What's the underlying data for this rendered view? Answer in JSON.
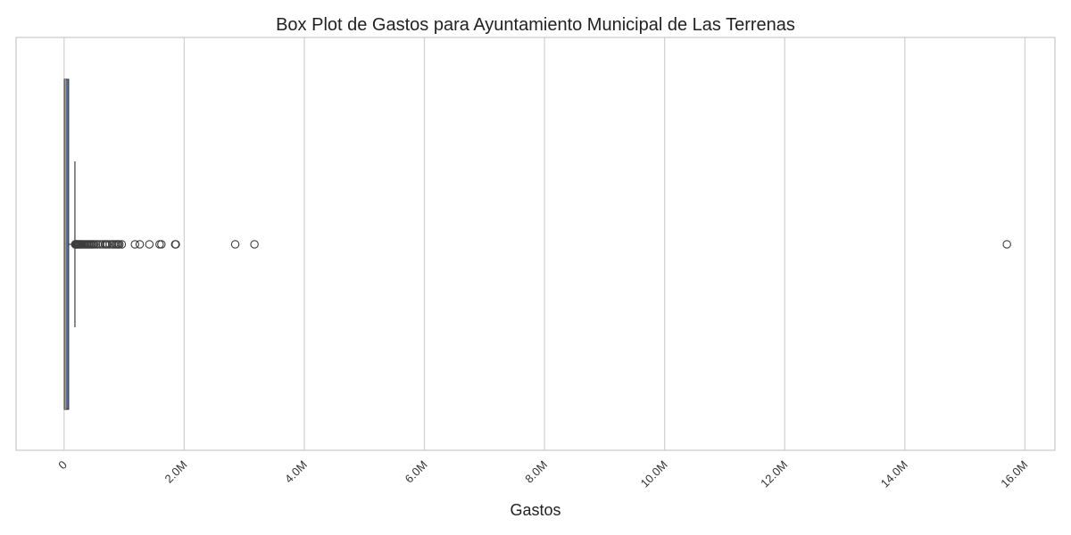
{
  "chart_data": {
    "type": "boxplot",
    "orientation": "horizontal",
    "title": "Box Plot de Gastos para Ayuntamiento Municipal de Las Terrenas",
    "xlabel": "Gastos",
    "ylabel": "",
    "xlim": [
      -800000,
      16500000
    ],
    "xticks": [
      {
        "value": 0,
        "label": "0"
      },
      {
        "value": 2000000,
        "label": "2.0M"
      },
      {
        "value": 4000000,
        "label": "4.0M"
      },
      {
        "value": 6000000,
        "label": "6.0M"
      },
      {
        "value": 8000000,
        "label": "8.0M"
      },
      {
        "value": 10000000,
        "label": "10.0M"
      },
      {
        "value": 12000000,
        "label": "12.0M"
      },
      {
        "value": 14000000,
        "label": "14.0M"
      },
      {
        "value": 16000000,
        "label": "16.0M"
      }
    ],
    "grid": true,
    "box": {
      "whisker_low": 0,
      "q1": 5000,
      "median": 20000,
      "q3": 75000,
      "whisker_high": 180000,
      "color": "#5a6fa8",
      "median_color": "#c9a84a"
    },
    "outliers": [
      185000,
      195000,
      205000,
      215000,
      225000,
      240000,
      255000,
      270000,
      285000,
      300000,
      320000,
      340000,
      360000,
      380000,
      400000,
      420000,
      440000,
      460000,
      480000,
      500000,
      530000,
      560000,
      600000,
      640000,
      680000,
      700000,
      720000,
      760000,
      800000,
      830000,
      860000,
      880000,
      900000,
      920000,
      960000,
      1180000,
      1260000,
      1420000,
      1590000,
      1620000,
      1850000,
      1860000,
      2850000,
      3170000,
      15700000
    ]
  }
}
